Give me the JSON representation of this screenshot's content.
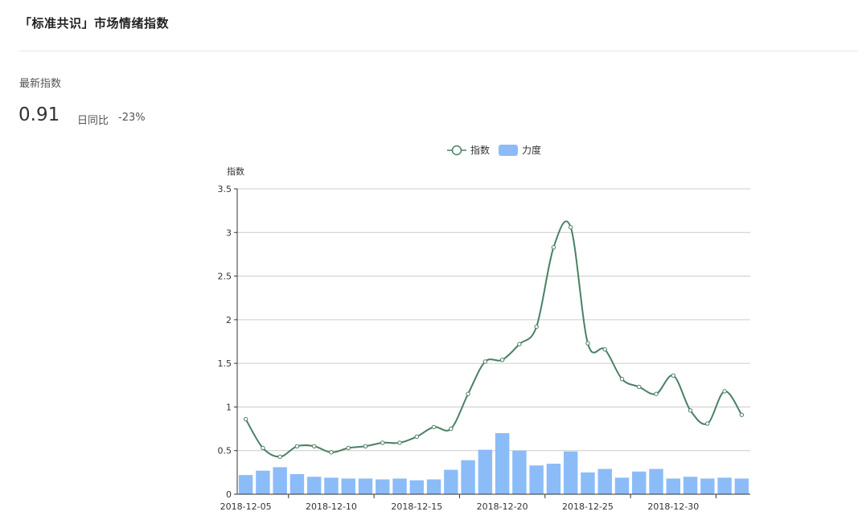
{
  "header": {
    "title": "「标准共识」市场情绪指数"
  },
  "summary": {
    "latest_label": "最新指数",
    "latest_value": "0.91",
    "yoy_label": "日同比",
    "yoy_value": "-23%"
  },
  "chart_data": {
    "type": "line",
    "ylabel": "指数",
    "ylim": [
      0,
      3.5
    ],
    "yticks": [
      "0",
      "0.5",
      "1",
      "1.5",
      "2",
      "2.5",
      "3",
      "3.5"
    ],
    "grid": true,
    "legend_position": "top-center",
    "x": [
      "2018-12-05",
      "2018-12-06",
      "2018-12-07",
      "2018-12-08",
      "2018-12-09",
      "2018-12-10",
      "2018-12-11",
      "2018-12-12",
      "2018-12-13",
      "2018-12-14",
      "2018-12-15",
      "2018-12-16",
      "2018-12-17",
      "2018-12-18",
      "2018-12-19",
      "2018-12-20",
      "2018-12-21",
      "2018-12-22",
      "2018-12-23",
      "2018-12-24",
      "2018-12-25",
      "2018-12-26",
      "2018-12-27",
      "2018-12-28",
      "2018-12-29",
      "2018-12-30",
      "2018-12-31",
      "2019-01-01",
      "2019-01-02",
      "2019-01-03"
    ],
    "xtick_labels": [
      "2018-12-05",
      "2018-12-10",
      "2018-12-15",
      "2018-12-20",
      "2018-12-25",
      "2018-12-30"
    ],
    "series": [
      {
        "name": "指数",
        "kind": "line",
        "color": "#4a8064",
        "values": [
          0.86,
          0.53,
          0.43,
          0.55,
          0.55,
          0.48,
          0.53,
          0.55,
          0.59,
          0.59,
          0.66,
          0.77,
          0.75,
          1.15,
          1.52,
          1.54,
          1.72,
          1.92,
          2.83,
          3.06,
          1.73,
          1.66,
          1.32,
          1.23,
          1.15,
          1.36,
          0.96,
          0.81,
          1.18,
          0.91
        ]
      },
      {
        "name": "力度",
        "kind": "bar",
        "color": "#8bbcf8",
        "values": [
          0.22,
          0.27,
          0.31,
          0.23,
          0.2,
          0.19,
          0.18,
          0.18,
          0.17,
          0.18,
          0.16,
          0.17,
          0.28,
          0.39,
          0.51,
          0.7,
          0.5,
          0.33,
          0.35,
          0.49,
          0.25,
          0.29,
          0.19,
          0.26,
          0.29,
          0.18,
          0.2,
          0.18,
          0.19,
          0.18
        ]
      }
    ]
  }
}
